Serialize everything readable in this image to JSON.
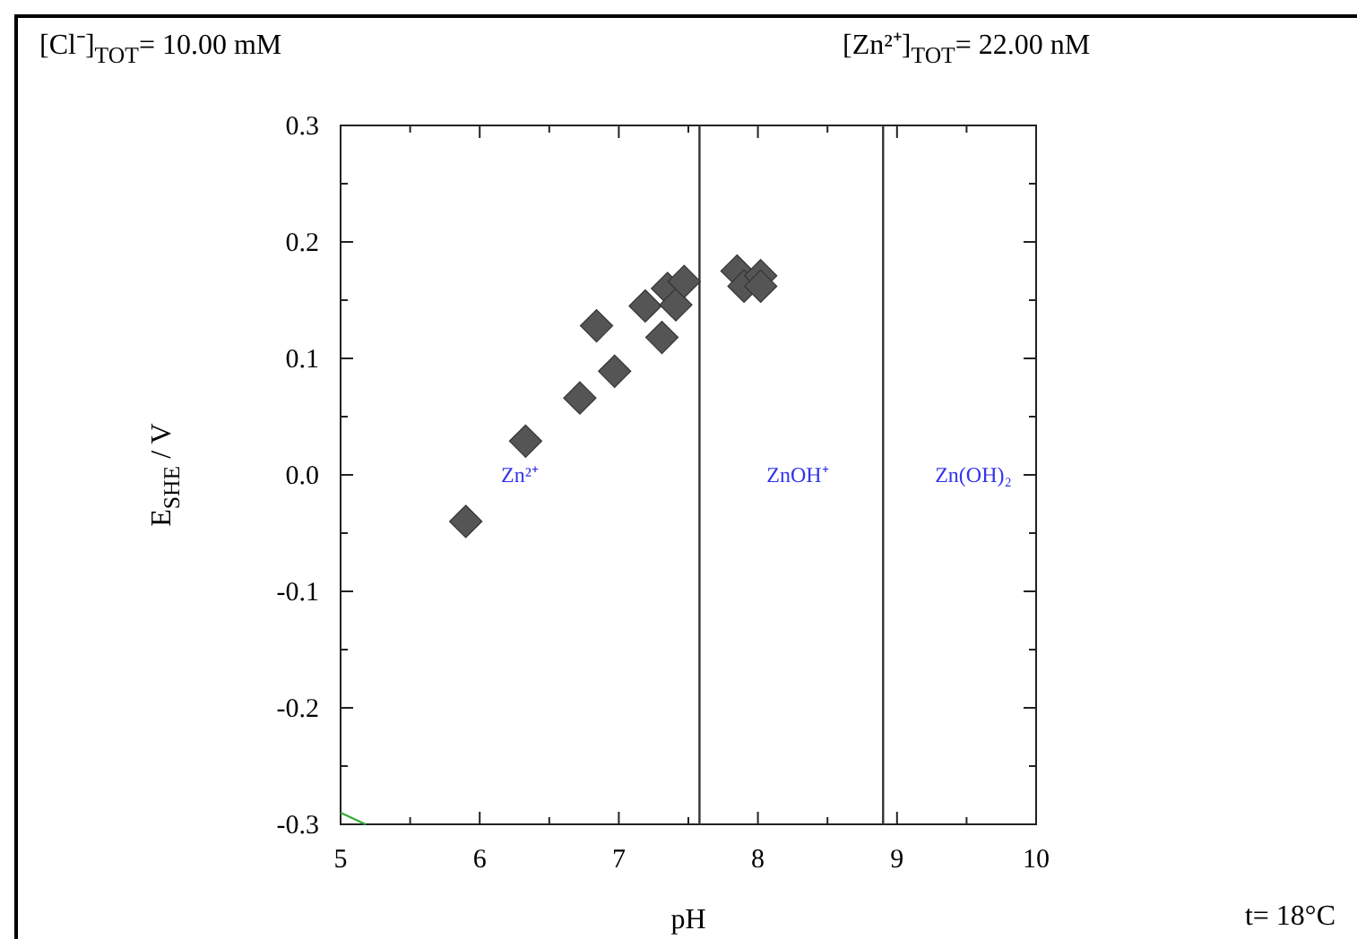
{
  "chart_data": {
    "type": "scatter",
    "xlabel": "pH",
    "ylabel": "E$_{SHE}$ / V",
    "xlim": [
      5,
      10
    ],
    "ylim": [
      -0.3,
      0.3
    ],
    "xticks": [
      5,
      {
        "value": 5.5,
        "label": null
      },
      6,
      {
        "value": 6.5,
        "label": null
      },
      7,
      {
        "value": 7.5,
        "label": null
      },
      8,
      {
        "value": 8.5,
        "label": null
      },
      9,
      {
        "value": 9.5,
        "label": null
      },
      10
    ],
    "yticks": [
      -0.3,
      {
        "value": -0.25,
        "label": null
      },
      -0.2,
      {
        "value": -0.15,
        "label": null
      },
      -0.1,
      {
        "value": -0.05,
        "label": null
      },
      {
        "value": 0,
        "label": "0.0"
      },
      {
        "value": 0.05,
        "label": null
      },
      0.1,
      {
        "value": 0.15,
        "label": null
      },
      0.2,
      {
        "value": 0.25,
        "label": null
      },
      0.3
    ],
    "grid": false,
    "series": [
      {
        "color": "#555555",
        "marker": "diamond",
        "x": [
          5.9,
          6.33,
          6.72,
          6.84,
          6.97,
          7.19,
          7.31,
          7.35,
          7.41,
          7.47,
          7.85,
          7.9,
          8.02,
          8.02
        ],
        "values": [
          -0.04,
          0.029,
          0.066,
          0.128,
          0.089,
          0.145,
          0.118,
          0.16,
          0.146,
          0.166,
          0.175,
          0.162,
          0.171,
          0.162
        ]
      },
      {
        "type": "line",
        "color": "#33aa33",
        "marker": "none",
        "x": [
          5,
          5.18
        ],
        "values": [
          -0.29,
          -0.3
        ]
      }
    ],
    "ref_lines": [
      {
        "axis": "x",
        "value": 7.58,
        "color": "#333333"
      },
      {
        "axis": "x",
        "value": 8.9,
        "color": "#333333"
      }
    ],
    "annotations": [
      "Zn²⁺",
      "ZnOH⁺",
      "Zn(OH)₂",
      "[Cl⁻]$_{TOT}$=   10.00 mM",
      "[Zn²⁺]$_{TOT}$=   22.00 nM",
      "t= 18°C"
    ]
  }
}
